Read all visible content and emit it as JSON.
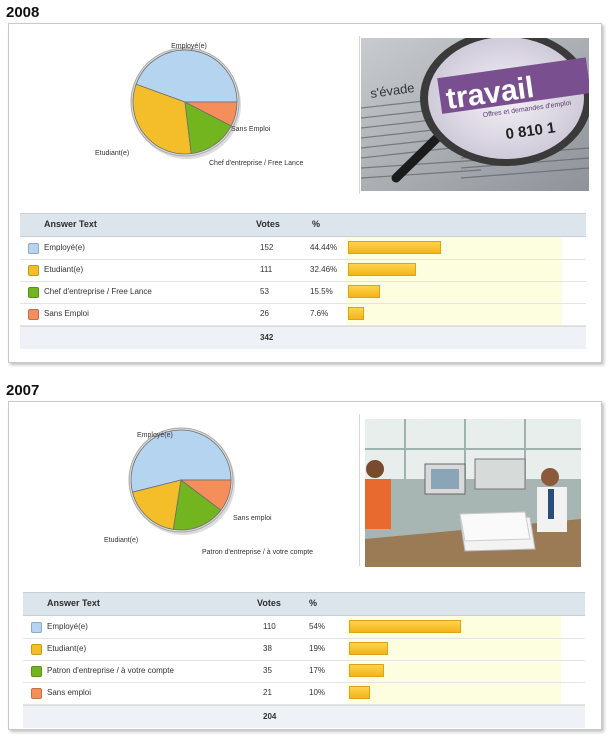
{
  "chart_data": [
    {
      "type": "pie",
      "title": "2008",
      "categories": [
        "Employé(e)",
        "Etudiant(e)",
        "Chef d'entreprise / Free Lance",
        "Sans Emploi"
      ],
      "values": [
        152,
        111,
        53,
        26
      ],
      "percents": [
        "44.44%",
        "32.46%",
        "15.5%",
        "7.6%"
      ],
      "total": 342,
      "colors": [
        "#b4d4f0",
        "#f3be2a",
        "#72b51f",
        "#f68e5b"
      ]
    },
    {
      "type": "pie",
      "title": "2007",
      "categories": [
        "Employé(e)",
        "Etudiant(e)",
        "Patron d'entreprise / à votre compte",
        "Sans emploi"
      ],
      "values": [
        110,
        38,
        35,
        21
      ],
      "percents": [
        "54%",
        "19%",
        "17%",
        "10%"
      ],
      "total": 204,
      "colors": [
        "#b4d4f0",
        "#f3be2a",
        "#72b51f",
        "#f68e5b"
      ]
    }
  ],
  "table_headers": {
    "answer": "Answer Text",
    "votes": "Votes",
    "pct": "%"
  },
  "photos": [
    {
      "icon": "newspaper-magnifier-photo",
      "text_big": "travail",
      "text_sub": "Offres et demandes d'emploi",
      "text_num": "0 810 1",
      "text_side": "s'évade"
    },
    {
      "icon": "office-workers-photo"
    }
  ]
}
